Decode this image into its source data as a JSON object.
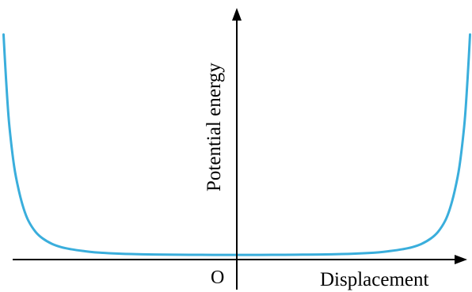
{
  "chart_data": {
    "type": "line",
    "title": "",
    "xlabel": "Displacement",
    "ylabel": "Potential energy",
    "origin_label": "O",
    "grid": false,
    "legend": "none",
    "x_ticks": false,
    "y_ticks": false,
    "xlim": [
      -1,
      1
    ],
    "ylim": [
      -0.04,
      1.08
    ],
    "series": [
      {
        "color": "#3aaedc",
        "x": [
          -0.985,
          -0.98,
          -0.97,
          -0.96,
          -0.94,
          -0.92,
          -0.9,
          -0.88,
          -0.85,
          -0.82,
          -0.78,
          -0.74,
          -0.7,
          -0.65,
          -0.6,
          -0.5,
          -0.4,
          -0.3,
          -0.2,
          -0.1,
          0,
          0.1,
          0.2,
          0.3,
          0.4,
          0.5,
          0.6,
          0.65,
          0.7,
          0.74,
          0.78,
          0.82,
          0.85,
          0.88,
          0.9,
          0.92,
          0.94,
          0.96,
          0.97,
          0.98,
          0.985
        ],
        "y": [
          1.0,
          0.9,
          0.72,
          0.58,
          0.4,
          0.29,
          0.21,
          0.155,
          0.105,
          0.075,
          0.05,
          0.035,
          0.026,
          0.018,
          0.012,
          0.006,
          0.003,
          0.0015,
          0.0007,
          0.0002,
          0.0,
          0.0002,
          0.0007,
          0.0015,
          0.003,
          0.006,
          0.012,
          0.018,
          0.026,
          0.035,
          0.05,
          0.075,
          0.105,
          0.155,
          0.21,
          0.29,
          0.4,
          0.58,
          0.72,
          0.9,
          1.0
        ]
      }
    ]
  }
}
